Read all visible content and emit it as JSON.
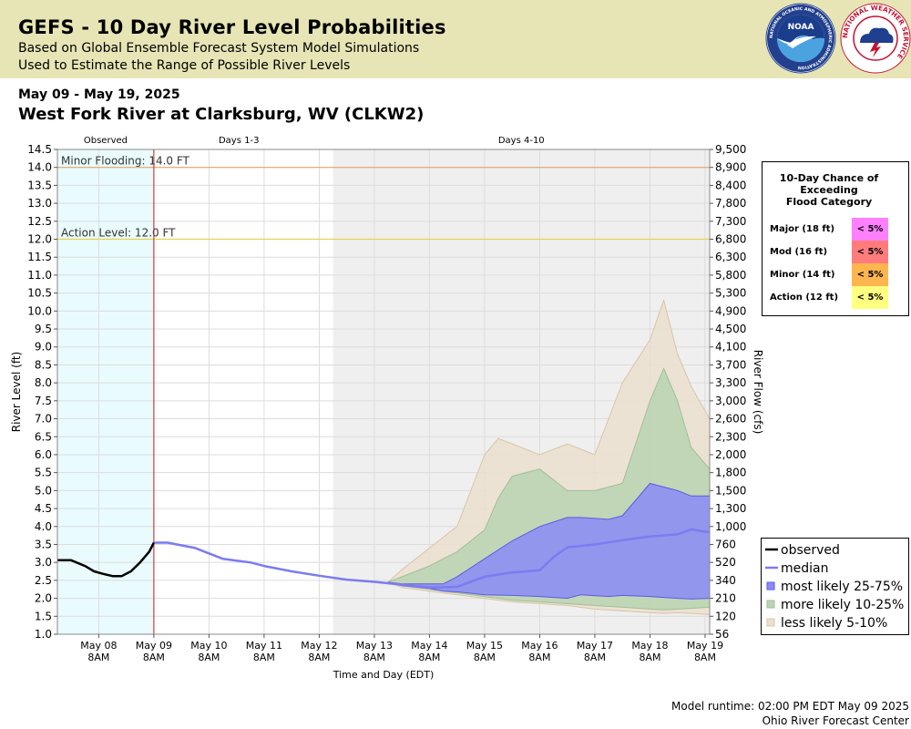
{
  "header": {
    "title": "GEFS - 10 Day River Level Probabilities",
    "subtitle_1": "Based on Global Ensemble Forecast System Model Simulations",
    "subtitle_2": "Used to Estimate the Range of Possible River Levels",
    "logos": [
      {
        "name": "noaa-logo",
        "text": "NOAA",
        "ring_text": "NATIONAL OCEANIC AND ATMOSPHERIC ADMINISTRATION"
      },
      {
        "name": "nws-logo",
        "text": "NATIONAL WEATHER SERVICE"
      }
    ]
  },
  "date_range": "May 09 - May 19, 2025",
  "station": "West Fork River at Clarksburg, WV (CLKW2)",
  "footer": {
    "runtime": "Model runtime: 02:00 PM EDT May 09 2025",
    "center": "Ohio River Forecast Center"
  },
  "colors": {
    "observed_region": "#e9fbfd",
    "forecast_shade": "#efefef",
    "observed_line": "#000000",
    "median": "#7b7bf2",
    "band_25_75": "#8b8bf7",
    "band_10_25": "#bad3b2",
    "band_5_10": "#ebdfcf",
    "minor_line": "#e3a86a",
    "action_line": "#e9d24e",
    "now_line": "#c81e1e"
  },
  "chart_data": {
    "type": "area",
    "xlabel": "Time and Day (EDT)",
    "ylabel": "River Level (ft)",
    "ylabel_right": "River Flow (cfs)",
    "xlim": [
      "2025-05-07T14:00",
      "2025-05-19T10:00"
    ],
    "ylim": [
      1.0,
      14.5
    ],
    "y_ticks": [
      "1.0",
      "1.5",
      "2.0",
      "2.5",
      "3.0",
      "3.5",
      "4.0",
      "4.5",
      "5.0",
      "5.5",
      "6.0",
      "6.5",
      "7.0",
      "7.5",
      "8.0",
      "8.5",
      "9.0",
      "9.5",
      "10.0",
      "10.5",
      "11.0",
      "11.5",
      "12.0",
      "12.5",
      "13.0",
      "13.5",
      "14.0",
      "14.5"
    ],
    "flow_ticks": [
      "56",
      "120",
      "210",
      "340",
      "520",
      "760",
      "1,000",
      "1,300",
      "1,500",
      "1,800",
      "2,000",
      "2,300",
      "2,600",
      "3,000",
      "3,300",
      "3,700",
      "4,100",
      "4,500",
      "4,900",
      "5,300",
      "5,800",
      "6,300",
      "6,800",
      "7,300",
      "7,800",
      "8,400",
      "8,900",
      "9,500"
    ],
    "x_ticks": [
      {
        "t": "2025-05-08T08:00",
        "day": "May 08",
        "time": "8AM"
      },
      {
        "t": "2025-05-09T08:00",
        "day": "May 09",
        "time": "8AM"
      },
      {
        "t": "2025-05-10T08:00",
        "day": "May 10",
        "time": "8AM"
      },
      {
        "t": "2025-05-11T08:00",
        "day": "May 11",
        "time": "8AM"
      },
      {
        "t": "2025-05-12T08:00",
        "day": "May 12",
        "time": "8AM"
      },
      {
        "t": "2025-05-13T08:00",
        "day": "May 13",
        "time": "8AM"
      },
      {
        "t": "2025-05-14T08:00",
        "day": "May 14",
        "time": "8AM"
      },
      {
        "t": "2025-05-15T08:00",
        "day": "May 15",
        "time": "8AM"
      },
      {
        "t": "2025-05-16T08:00",
        "day": "May 16",
        "time": "8AM"
      },
      {
        "t": "2025-05-17T08:00",
        "day": "May 17",
        "time": "8AM"
      },
      {
        "t": "2025-05-18T08:00",
        "day": "May 18",
        "time": "8AM"
      },
      {
        "t": "2025-05-19T08:00",
        "day": "May 19",
        "time": "8AM"
      }
    ],
    "regions": [
      {
        "label": "Observed",
        "start": "2025-05-07T14:00",
        "end": "2025-05-09T08:00"
      },
      {
        "label": "Days 1-3",
        "start": "2025-05-09T08:00",
        "end": "2025-05-12T14:00"
      },
      {
        "label": "Days 4-10",
        "start": "2025-05-12T14:00",
        "end": "2025-05-19T10:00"
      }
    ],
    "now": "2025-05-09T08:00",
    "thresholds": [
      {
        "label": "Minor Flooding: 14.0 FT",
        "value": 14.0
      },
      {
        "label": "Action Level: 12.0 FT",
        "value": 12.0
      }
    ],
    "series": [
      {
        "name": "observed",
        "x": [
          "2025-05-07T14:00",
          "2025-05-07T20:00",
          "2025-05-08T02:00",
          "2025-05-08T06:00",
          "2025-05-08T10:00",
          "2025-05-08T14:00",
          "2025-05-08T18:00",
          "2025-05-08T22:00",
          "2025-05-09T02:00",
          "2025-05-09T06:00",
          "2025-05-09T08:00"
        ],
        "y": [
          3.06,
          3.06,
          2.9,
          2.75,
          2.68,
          2.62,
          2.62,
          2.75,
          3.0,
          3.3,
          3.55
        ]
      },
      {
        "name": "median",
        "x": [
          "2025-05-09T08:00",
          "2025-05-09T14:00",
          "2025-05-10T02:00",
          "2025-05-10T08:00",
          "2025-05-10T14:00",
          "2025-05-11T02:00",
          "2025-05-11T08:00",
          "2025-05-11T20:00",
          "2025-05-12T08:00",
          "2025-05-12T20:00",
          "2025-05-13T08:00",
          "2025-05-13T20:00",
          "2025-05-14T08:00",
          "2025-05-14T20:00",
          "2025-05-15T08:00",
          "2025-05-15T20:00",
          "2025-05-16T08:00",
          "2025-05-16T14:00",
          "2025-05-16T20:00",
          "2025-05-17T08:00",
          "2025-05-17T20:00",
          "2025-05-18T08:00",
          "2025-05-18T20:00",
          "2025-05-19T02:00",
          "2025-05-19T08:00",
          "2025-05-19T10:00"
        ],
        "y": [
          3.55,
          3.55,
          3.4,
          3.25,
          3.1,
          3.0,
          2.9,
          2.75,
          2.63,
          2.52,
          2.46,
          2.38,
          2.3,
          2.32,
          2.6,
          2.72,
          2.78,
          3.15,
          3.42,
          3.5,
          3.62,
          3.72,
          3.78,
          3.92,
          3.85,
          3.85
        ]
      },
      {
        "name": "most likely 25-75%",
        "x": [
          "2025-05-13T14:00",
          "2025-05-13T20:00",
          "2025-05-14T08:00",
          "2025-05-14T14:00",
          "2025-05-14T20:00",
          "2025-05-15T08:00",
          "2025-05-15T20:00",
          "2025-05-16T08:00",
          "2025-05-16T20:00",
          "2025-05-17T02:00",
          "2025-05-17T14:00",
          "2025-05-17T20:00",
          "2025-05-18T08:00",
          "2025-05-18T20:00",
          "2025-05-19T02:00",
          "2025-05-19T10:00"
        ],
        "lower": [
          2.45,
          2.35,
          2.28,
          2.2,
          2.18,
          2.1,
          2.08,
          2.05,
          2.0,
          2.1,
          2.05,
          2.08,
          2.05,
          2.0,
          1.98,
          2.0
        ],
        "upper": [
          2.45,
          2.4,
          2.4,
          2.4,
          2.6,
          3.1,
          3.6,
          4.0,
          4.25,
          4.25,
          4.2,
          4.3,
          5.2,
          5.0,
          4.85,
          4.85
        ]
      },
      {
        "name": "more likely 10-25%",
        "x": [
          "2025-05-13T14:00",
          "2025-05-13T20:00",
          "2025-05-14T08:00",
          "2025-05-14T20:00",
          "2025-05-15T08:00",
          "2025-05-15T14:00",
          "2025-05-15T20:00",
          "2025-05-16T08:00",
          "2025-05-16T20:00",
          "2025-05-17T08:00",
          "2025-05-17T20:00",
          "2025-05-18T08:00",
          "2025-05-18T14:00",
          "2025-05-18T20:00",
          "2025-05-19T02:00",
          "2025-05-19T10:00"
        ],
        "lower": [
          2.45,
          2.35,
          2.25,
          2.15,
          2.05,
          2.0,
          1.95,
          1.9,
          1.85,
          1.8,
          1.75,
          1.7,
          1.68,
          1.7,
          1.72,
          1.75
        ],
        "upper": [
          2.45,
          2.6,
          2.9,
          3.3,
          3.9,
          4.8,
          5.4,
          5.6,
          5.0,
          5.0,
          5.2,
          7.5,
          8.4,
          7.5,
          6.2,
          5.6
        ]
      },
      {
        "name": "less likely 5-10%",
        "x": [
          "2025-05-13T14:00",
          "2025-05-13T20:00",
          "2025-05-14T08:00",
          "2025-05-14T20:00",
          "2025-05-15T08:00",
          "2025-05-15T14:00",
          "2025-05-15T20:00",
          "2025-05-16T08:00",
          "2025-05-16T20:00",
          "2025-05-17T08:00",
          "2025-05-17T20:00",
          "2025-05-18T08:00",
          "2025-05-18T14:00",
          "2025-05-18T20:00",
          "2025-05-19T02:00",
          "2025-05-19T10:00"
        ],
        "lower": [
          2.45,
          2.3,
          2.2,
          2.1,
          2.0,
          1.95,
          1.9,
          1.85,
          1.8,
          1.7,
          1.65,
          1.6,
          1.58,
          1.6,
          1.58,
          1.55
        ],
        "upper": [
          2.45,
          2.8,
          3.4,
          4.0,
          6.0,
          6.45,
          6.3,
          6.0,
          6.3,
          6.0,
          8.0,
          9.2,
          10.3,
          8.8,
          7.9,
          7.0
        ]
      }
    ],
    "legend": {
      "position": "bottom-right",
      "items": [
        {
          "label": "observed",
          "type": "line",
          "color": "#000000"
        },
        {
          "label": "median",
          "type": "line",
          "color": "#7b7bf2"
        },
        {
          "label": "most likely 25-75%",
          "type": "box",
          "color": "#8b8bf7",
          "edge": "#5b5be0"
        },
        {
          "label": "more likely 10-25%",
          "type": "box",
          "color": "#bad3b2",
          "edge": "#9fbf95"
        },
        {
          "label": "less likely 5-10%",
          "type": "box",
          "color": "#ebdfcf",
          "edge": "#d9c4a6"
        }
      ]
    },
    "flood_table": {
      "title": [
        "10-Day Chance of",
        "Exceeding",
        "Flood Category"
      ],
      "rows": [
        {
          "label": "Major (18 ft)",
          "value": "< 5%",
          "color": "#ff80ff"
        },
        {
          "label": "Mod (16 ft)",
          "value": "< 5%",
          "color": "#ff7c7c"
        },
        {
          "label": "Minor (14 ft)",
          "value": "< 5%",
          "color": "#ffb54d"
        },
        {
          "label": "Action (12 ft)",
          "value": "< 5%",
          "color": "#ffff80"
        }
      ]
    }
  }
}
